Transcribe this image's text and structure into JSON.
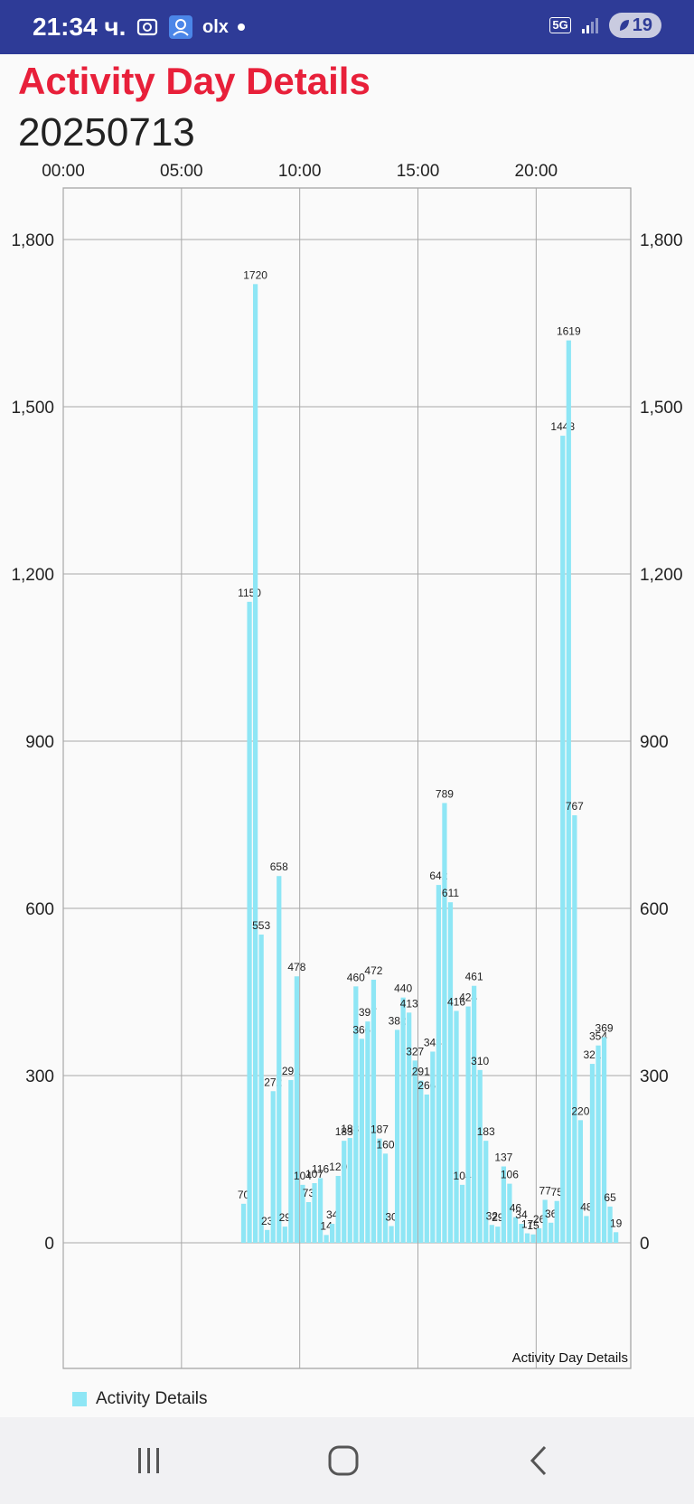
{
  "status_bar": {
    "time": "21:34 ч.",
    "network": "5G",
    "battery": "19",
    "icons": [
      "screenshot-icon",
      "user-badge-icon",
      "olx-icon",
      "dot-icon",
      "signal-icon",
      "battery-leaf-icon"
    ],
    "olx_label": "olx",
    "bg_color": "#2e3b97"
  },
  "header": {
    "title": "Activity Day Details",
    "title_color": "#e8203a",
    "date": "20250713"
  },
  "chart_data": {
    "type": "bar",
    "description": "Activity Day Details",
    "legend": "Activity Details",
    "bar_color": "#8ee6f5",
    "x_axis": {
      "min_hours": 0,
      "max_hours": 24,
      "ticks": [
        "00:00",
        "05:00",
        "10:00",
        "15:00",
        "20:00"
      ]
    },
    "y_axis": {
      "min": -250,
      "max": 1900,
      "ticks": [
        "0",
        "300",
        "600",
        "900",
        "1,200",
        "1,500",
        "1,800"
      ],
      "tick_values": [
        0,
        300,
        600,
        900,
        1200,
        1500,
        1800
      ]
    },
    "grid": true,
    "bars": [
      {
        "time": "07:30",
        "value": 70
      },
      {
        "time": "07:45",
        "value": 1150
      },
      {
        "time": "08:00",
        "value": 1720
      },
      {
        "time": "08:15",
        "value": 553
      },
      {
        "time": "08:30",
        "value": 23
      },
      {
        "time": "08:45",
        "value": 272
      },
      {
        "time": "09:00",
        "value": 658
      },
      {
        "time": "09:15",
        "value": 29
      },
      {
        "time": "09:30",
        "value": 292
      },
      {
        "time": "09:45",
        "value": 478
      },
      {
        "time": "10:00",
        "value": 104
      },
      {
        "time": "10:15",
        "value": 73
      },
      {
        "time": "10:30",
        "value": 107
      },
      {
        "time": "10:45",
        "value": 116
      },
      {
        "time": "11:00",
        "value": 14
      },
      {
        "time": "11:15",
        "value": 34
      },
      {
        "time": "11:30",
        "value": 120
      },
      {
        "time": "11:45",
        "value": 183
      },
      {
        "time": "12:00",
        "value": 188
      },
      {
        "time": "12:15",
        "value": 460
      },
      {
        "time": "12:30",
        "value": 366
      },
      {
        "time": "12:45",
        "value": 397
      },
      {
        "time": "13:00",
        "value": 472
      },
      {
        "time": "13:15",
        "value": 187
      },
      {
        "time": "13:30",
        "value": 160
      },
      {
        "time": "13:45",
        "value": 30
      },
      {
        "time": "14:00",
        "value": 382
      },
      {
        "time": "14:15",
        "value": 440
      },
      {
        "time": "14:30",
        "value": 413
      },
      {
        "time": "14:45",
        "value": 327
      },
      {
        "time": "15:00",
        "value": 291
      },
      {
        "time": "15:15",
        "value": 266
      },
      {
        "time": "15:30",
        "value": 343
      },
      {
        "time": "15:45",
        "value": 642
      },
      {
        "time": "16:00",
        "value": 789
      },
      {
        "time": "16:15",
        "value": 611
      },
      {
        "time": "16:30",
        "value": 416
      },
      {
        "time": "16:45",
        "value": 104
      },
      {
        "time": "17:00",
        "value": 424
      },
      {
        "time": "17:15",
        "value": 461
      },
      {
        "time": "17:30",
        "value": 310
      },
      {
        "time": "17:45",
        "value": 183
      },
      {
        "time": "18:00",
        "value": 32
      },
      {
        "time": "18:15",
        "value": 29
      },
      {
        "time": "18:30",
        "value": 137
      },
      {
        "time": "18:45",
        "value": 106
      },
      {
        "time": "19:00",
        "value": 46
      },
      {
        "time": "19:15",
        "value": 34
      },
      {
        "time": "19:30",
        "value": 17
      },
      {
        "time": "19:45",
        "value": 15
      },
      {
        "time": "20:00",
        "value": 26
      },
      {
        "time": "20:15",
        "value": 77
      },
      {
        "time": "20:30",
        "value": 36
      },
      {
        "time": "20:45",
        "value": 75
      },
      {
        "time": "21:00",
        "value": 1448
      },
      {
        "time": "21:15",
        "value": 1619
      },
      {
        "time": "21:30",
        "value": 767
      },
      {
        "time": "21:45",
        "value": 220
      },
      {
        "time": "22:00",
        "value": 48
      },
      {
        "time": "22:15",
        "value": 321
      },
      {
        "time": "22:30",
        "value": 354
      },
      {
        "time": "22:45",
        "value": 369
      },
      {
        "time": "23:00",
        "value": 65
      },
      {
        "time": "23:15",
        "value": 19
      }
    ]
  },
  "nav_bar": {
    "buttons": [
      "recents-icon",
      "home-icon",
      "back-icon"
    ]
  }
}
